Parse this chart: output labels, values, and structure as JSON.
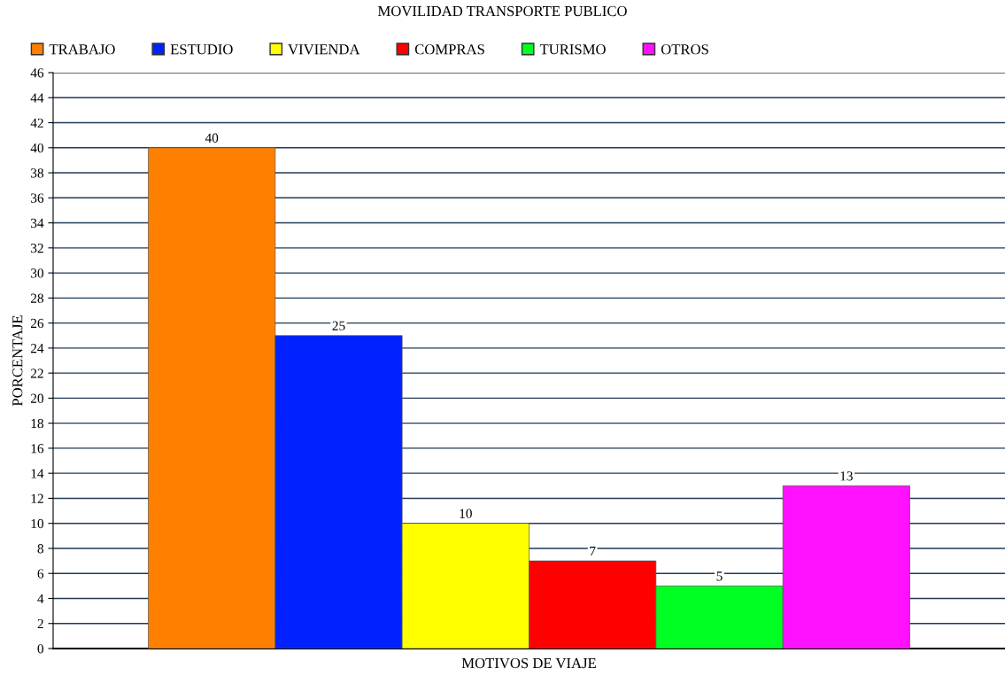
{
  "chart_data": {
    "type": "bar",
    "title": "MOVILIDAD TRANSPORTE PUBLICO",
    "xlabel": "MOTIVOS DE VIAJE",
    "ylabel": "PORCENTAJE",
    "categories": [
      null
    ],
    "series": [
      {
        "name": "TRABAJO",
        "color": "#ff8000",
        "values": [
          40
        ]
      },
      {
        "name": "ESTUDIO",
        "color": "#0022ff",
        "values": [
          25
        ]
      },
      {
        "name": "VIVIENDA",
        "color": "#ffff00",
        "values": [
          10
        ]
      },
      {
        "name": "COMPRAS",
        "color": "#ff0000",
        "values": [
          7
        ]
      },
      {
        "name": "TURISMO",
        "color": "#00ff22",
        "values": [
          5
        ]
      },
      {
        "name": "OTROS",
        "color": "#ff11ff",
        "values": [
          13
        ]
      }
    ],
    "ylim": [
      0,
      46
    ],
    "yticks": [
      0,
      2,
      4,
      6,
      8,
      10,
      12,
      14,
      16,
      18,
      20,
      22,
      24,
      26,
      28,
      30,
      32,
      34,
      36,
      38,
      40,
      42,
      44,
      46
    ],
    "grid": "y",
    "legend": "top left",
    "data_labels": true
  }
}
